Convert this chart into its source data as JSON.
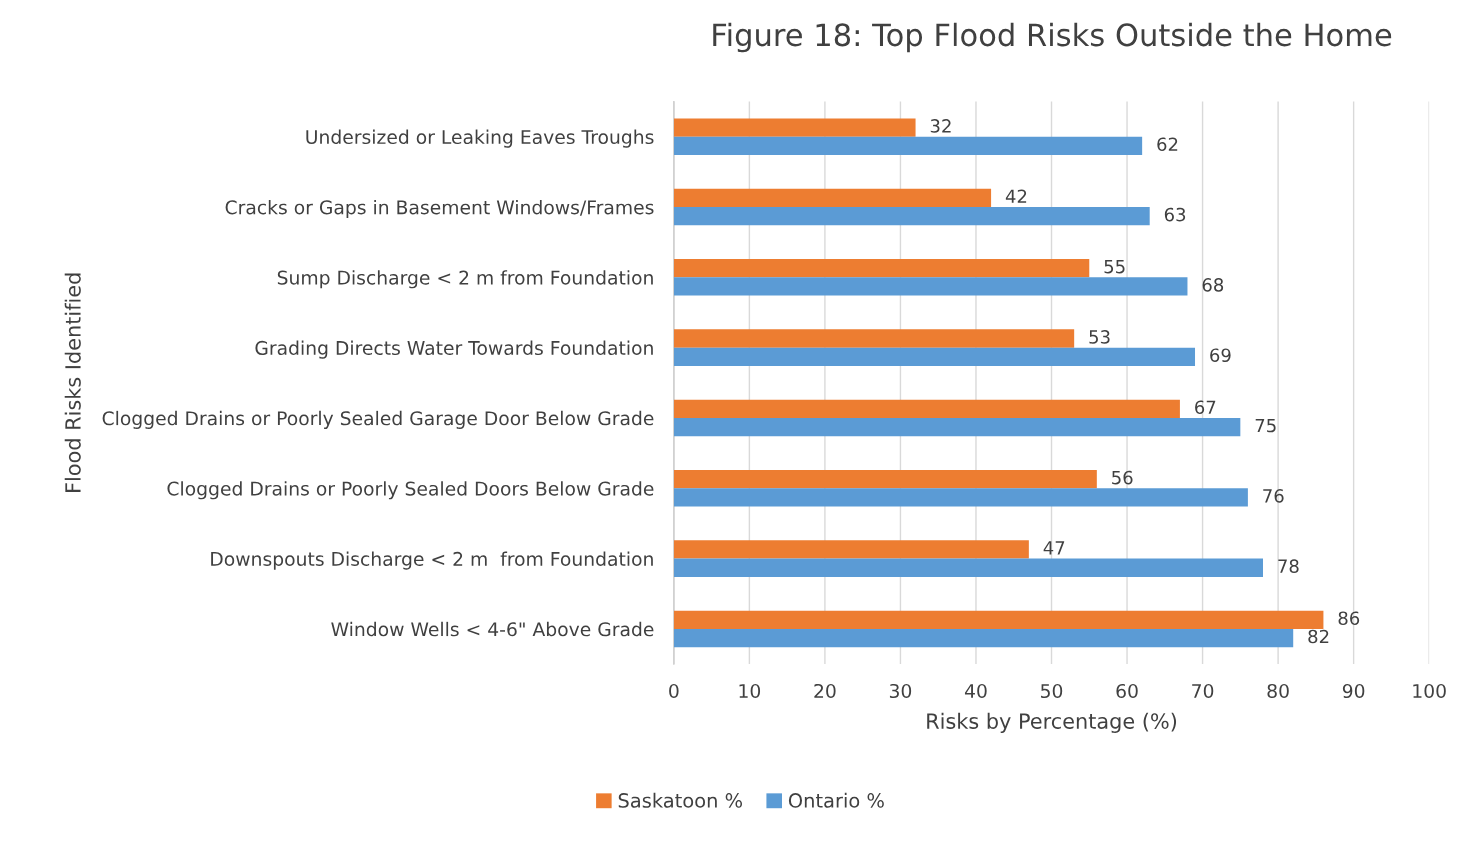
{
  "chart_data": {
    "type": "bar",
    "orientation": "horizontal",
    "title": "Figure 18: Top Flood Risks Outside the Home",
    "xlabel": "Risks by Percentage (%)",
    "ylabel": "Flood Risks Identified",
    "categories": [
      "Undersized or Leaking Eaves Troughs",
      "Cracks or Gaps in Basement Windows/Frames",
      "Sump Discharge < 2 m from Foundation",
      "Grading Directs Water Towards Foundation",
      "Clogged Drains or Poorly Sealed Garage Door Below Grade",
      "Clogged Drains or Poorly Sealed Doors Below Grade",
      "Downspouts Discharge < 2 m  from Foundation",
      "Window Wells < 4-6\" Above Grade"
    ],
    "series": [
      {
        "name": "Saskatoon %",
        "color": "#ed7d31",
        "values": [
          32,
          42,
          55,
          53,
          67,
          56,
          47,
          86
        ]
      },
      {
        "name": "Ontario %",
        "color": "#5b9bd5",
        "values": [
          62,
          63,
          68,
          69,
          75,
          76,
          78,
          82
        ]
      }
    ],
    "xlim": [
      0,
      100
    ],
    "xticks": [
      0,
      10,
      20,
      30,
      40,
      50,
      60,
      70,
      80,
      90,
      100
    ],
    "grid": "x",
    "legend": "bottom",
    "data_labels": true
  }
}
